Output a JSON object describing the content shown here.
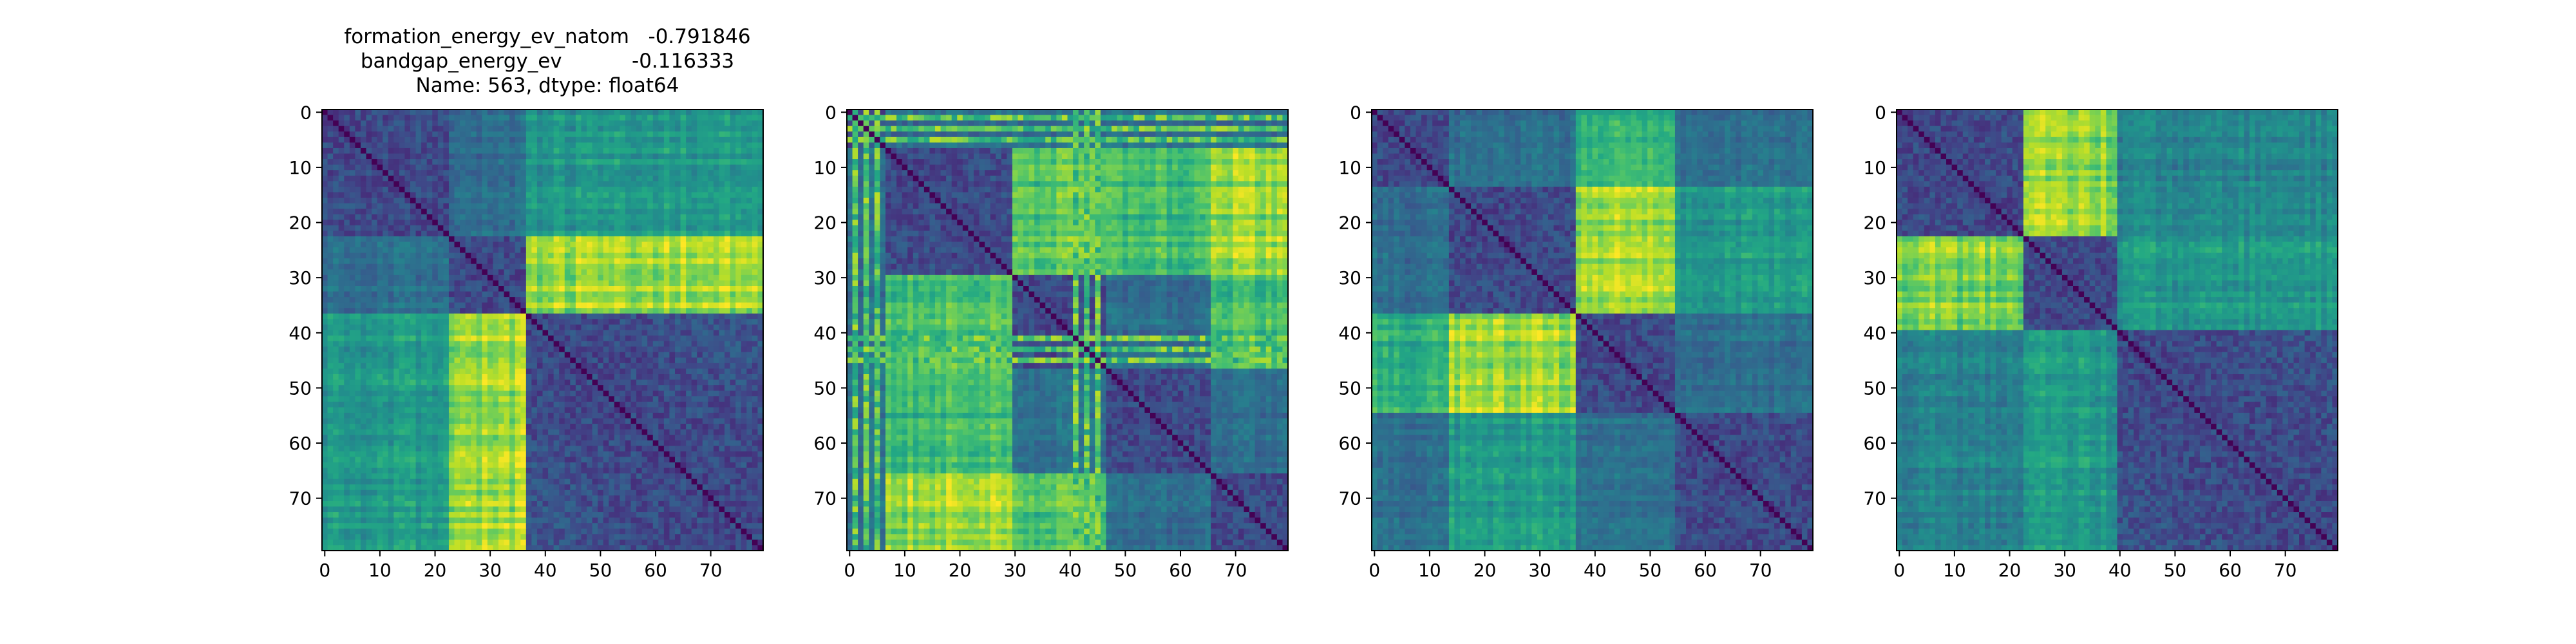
{
  "title": {
    "line1": "formation_energy_ev_natom   -0.791846",
    "line2": "bandgap_energy_ev           -0.116333",
    "line3": "Name: 563, dtype: float64"
  },
  "chart_data": [
    {
      "type": "heatmap",
      "title": "",
      "colormap": "viridis",
      "size": 80,
      "xlim": [
        0,
        79
      ],
      "ylim": [
        79,
        0
      ],
      "xticks": [
        0,
        10,
        20,
        30,
        40,
        50,
        60,
        70
      ],
      "yticks": [
        0,
        10,
        20,
        30,
        40,
        50,
        60,
        70
      ],
      "blocks": [
        [
          0,
          23
        ],
        [
          23,
          37
        ],
        [
          37,
          80
        ]
      ],
      "hot_blocks": [
        [
          1,
          2,
          0.95
        ],
        [
          2,
          1,
          0.95
        ],
        [
          0,
          2,
          0.6
        ],
        [
          2,
          0,
          0.6
        ]
      ],
      "grid": false
    },
    {
      "type": "heatmap",
      "title": "",
      "colormap": "viridis",
      "size": 80,
      "xlim": [
        0,
        79
      ],
      "ylim": [
        79,
        0
      ],
      "xticks": [
        0,
        10,
        20,
        30,
        40,
        50,
        60,
        70
      ],
      "yticks": [
        0,
        10,
        20,
        30,
        40,
        50,
        60,
        70
      ],
      "blocks": [
        [
          0,
          7
        ],
        [
          7,
          30
        ],
        [
          30,
          47
        ],
        [
          47,
          66
        ],
        [
          66,
          80
        ]
      ],
      "hot_blocks": [
        [
          1,
          4,
          0.95
        ],
        [
          4,
          1,
          0.95
        ],
        [
          1,
          2,
          0.8
        ],
        [
          2,
          1,
          0.8
        ],
        [
          2,
          4,
          0.8
        ],
        [
          4,
          2,
          0.8
        ],
        [
          1,
          3,
          0.75
        ],
        [
          3,
          1,
          0.75
        ]
      ],
      "stripes": [
        1,
        3,
        5,
        41,
        43,
        45
      ],
      "grid": false
    },
    {
      "type": "heatmap",
      "title": "",
      "colormap": "viridis",
      "size": 80,
      "xlim": [
        0,
        79
      ],
      "ylim": [
        79,
        0
      ],
      "xticks": [
        0,
        10,
        20,
        30,
        40,
        50,
        60,
        70
      ],
      "yticks": [
        0,
        10,
        20,
        30,
        40,
        50,
        60,
        70
      ],
      "blocks": [
        [
          0,
          14
        ],
        [
          14,
          37
        ],
        [
          37,
          55
        ],
        [
          55,
          80
        ]
      ],
      "hot_blocks": [
        [
          1,
          2,
          0.95
        ],
        [
          2,
          1,
          0.95
        ],
        [
          0,
          2,
          0.7
        ],
        [
          2,
          0,
          0.7
        ],
        [
          1,
          3,
          0.6
        ],
        [
          3,
          1,
          0.6
        ]
      ],
      "grid": false
    },
    {
      "type": "heatmap",
      "title": "",
      "colormap": "viridis",
      "size": 80,
      "xlim": [
        0,
        79
      ],
      "ylim": [
        79,
        0
      ],
      "xticks": [
        0,
        10,
        20,
        30,
        40,
        50,
        60,
        70
      ],
      "yticks": [
        0,
        10,
        20,
        30,
        40,
        50,
        60,
        70
      ],
      "blocks": [
        [
          0,
          23
        ],
        [
          23,
          40
        ],
        [
          40,
          80
        ]
      ],
      "hot_blocks": [
        [
          0,
          1,
          0.9
        ],
        [
          1,
          0,
          0.9
        ],
        [
          1,
          2,
          0.6
        ],
        [
          2,
          1,
          0.6
        ],
        [
          0,
          2,
          0.5
        ],
        [
          2,
          0,
          0.5
        ]
      ],
      "grid": false
    }
  ]
}
